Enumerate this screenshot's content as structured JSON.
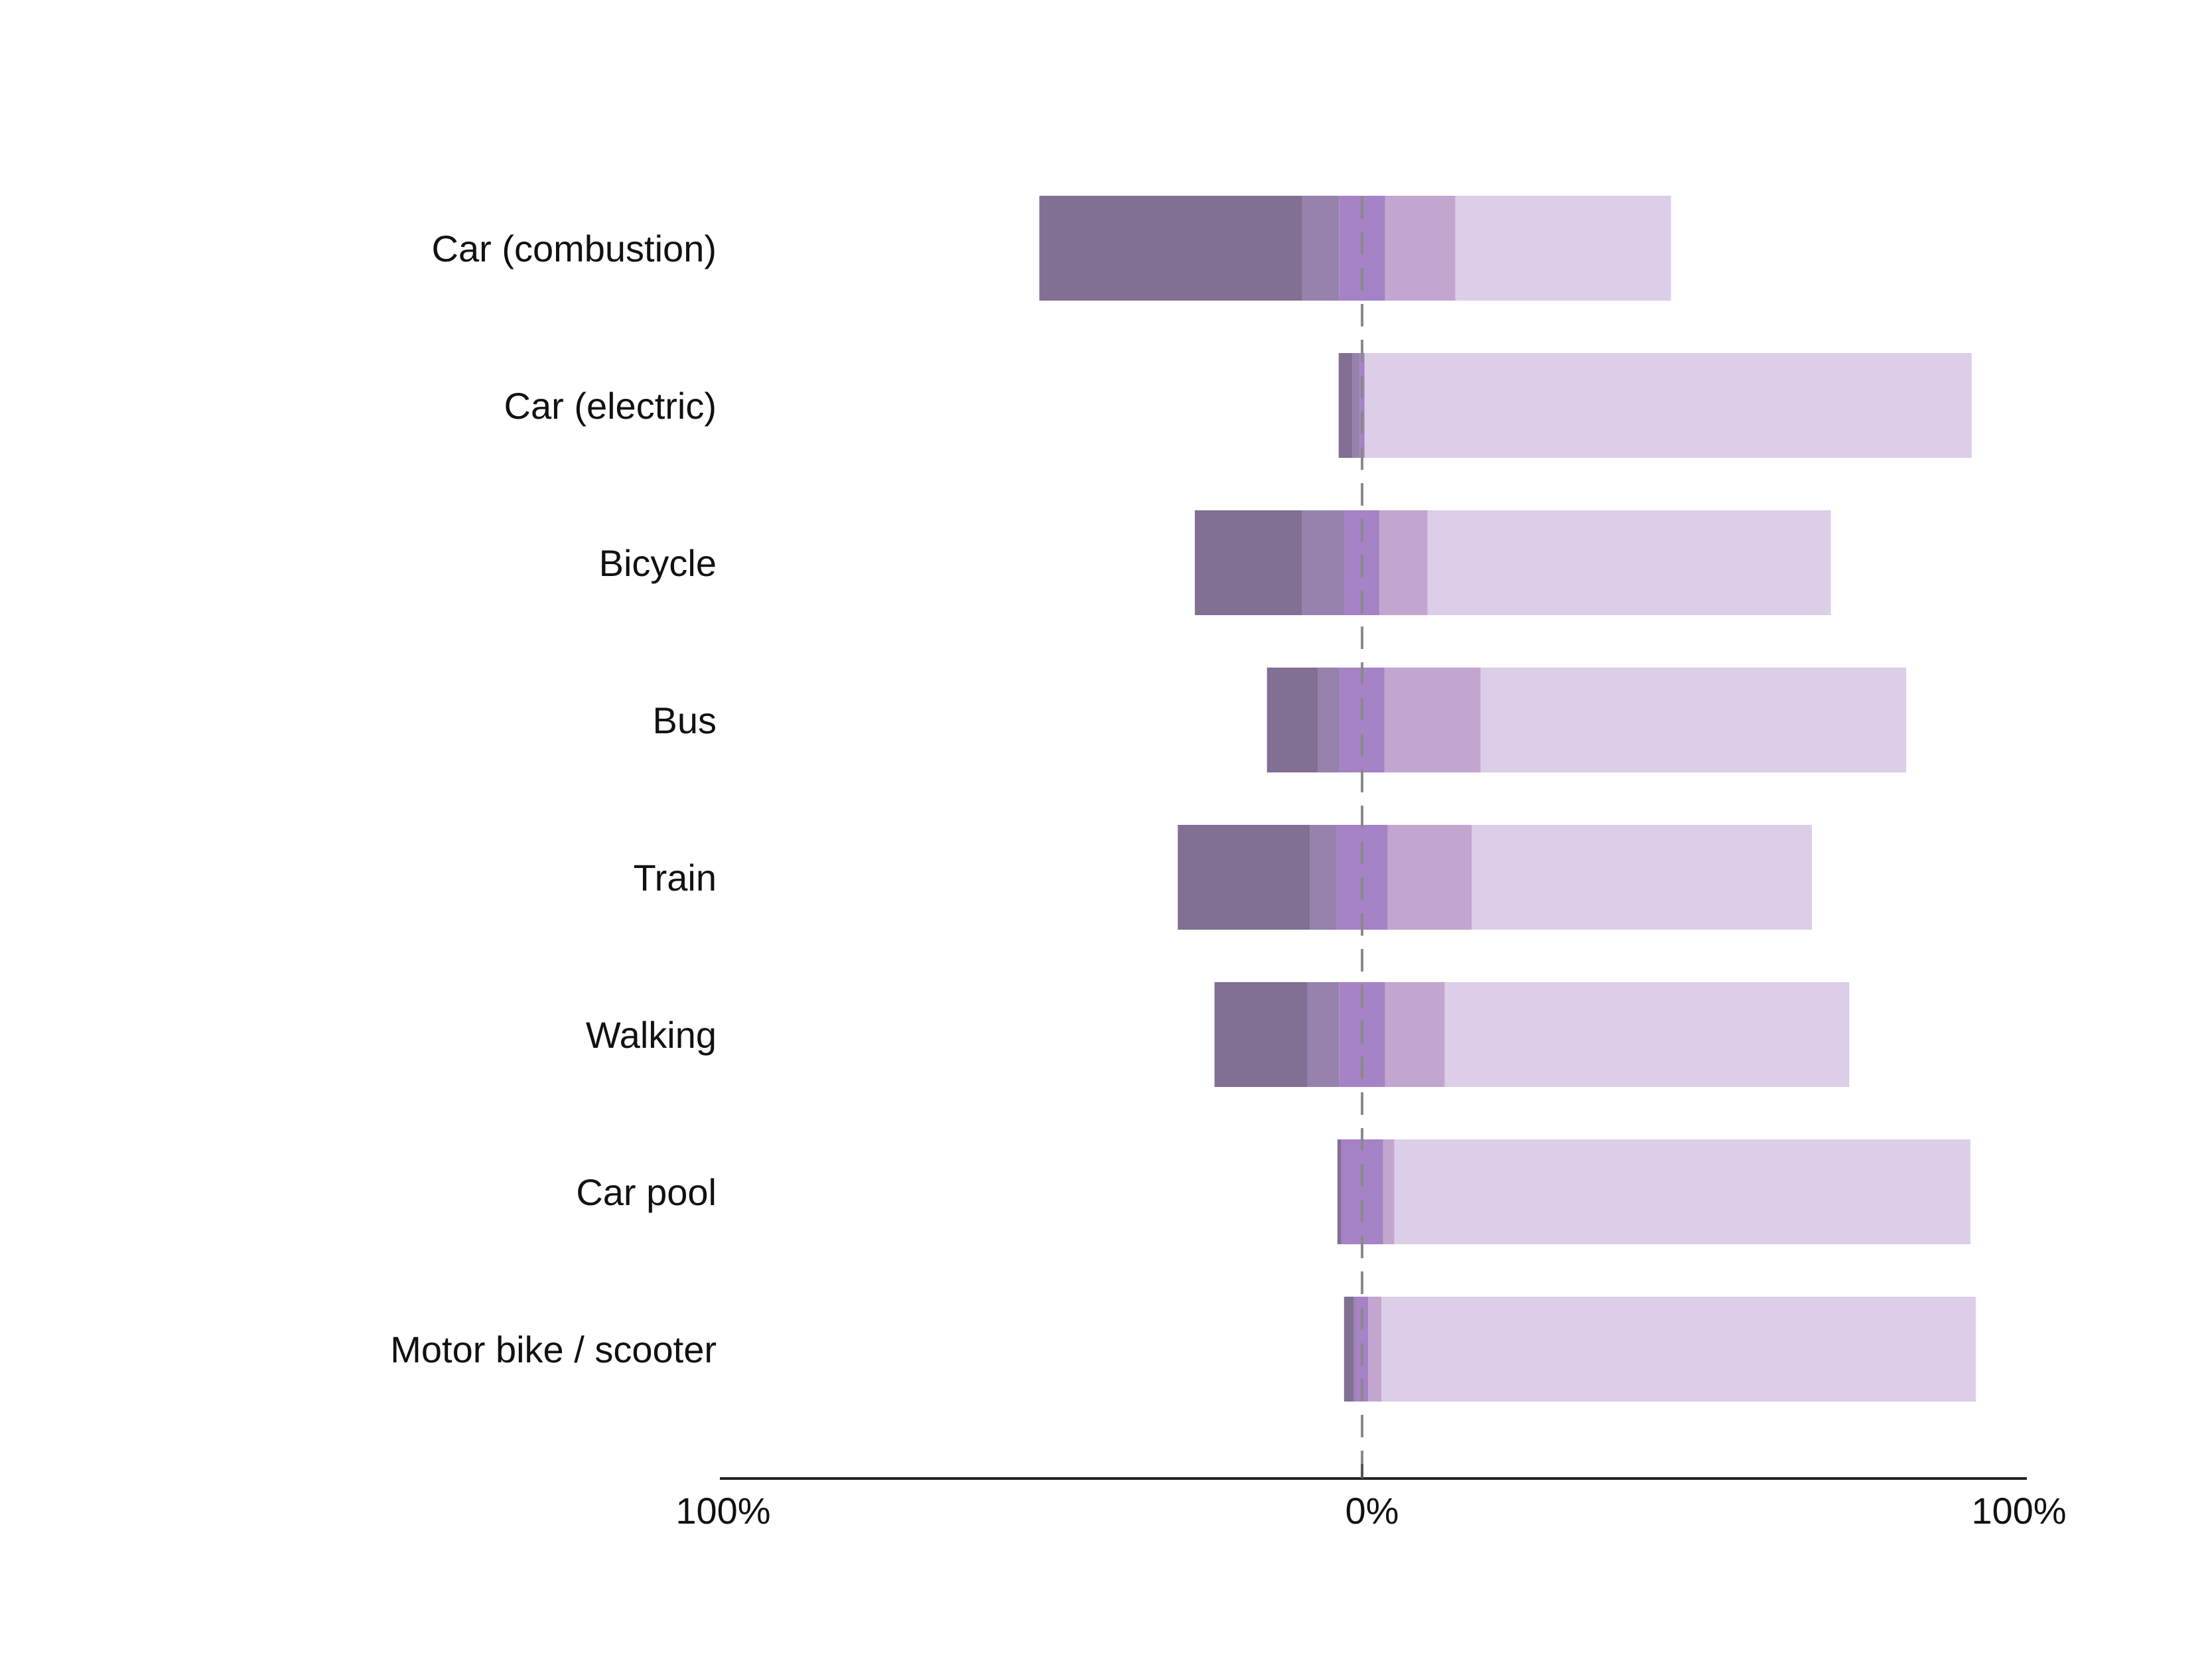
{
  "chart_data": {
    "type": "bar",
    "orientation": "horizontal",
    "stacking": "diverging",
    "title": "",
    "xlabel": "",
    "ylabel": "",
    "categories": [
      "Car (combustion)",
      "Car (electric)",
      "Bicycle",
      "Bus",
      "Train",
      "Walking",
      "Car pool",
      "Motor bike / scooter"
    ],
    "xlim": [
      -100,
      100
    ],
    "x_tick_labels": [
      "100%",
      "0%",
      "100%"
    ],
    "center_line": "dashed",
    "grid": false,
    "legend": "none",
    "series": [
      {
        "values": [
          41.6,
          2.2,
          16.9,
          8.1,
          20.9,
          14.7,
          0.6,
          1.5
        ],
        "color": "#826f94",
        "side": "negative"
      },
      {
        "values": [
          5.8,
          1.1,
          6.8,
          3.4,
          4.2,
          5.0,
          0.0,
          0.4
        ],
        "color": "#9682ad",
        "side": "negative"
      },
      {
        "values": [
          7.3,
          0.8,
          5.5,
          7.1,
          8.1,
          7.3,
          6.6,
          1.9
        ],
        "color": "#a682c6",
        "side": "center"
      },
      {
        "values": [
          11.1,
          0.0,
          7.6,
          15.2,
          13.3,
          9.4,
          1.8,
          2.1
        ],
        "color": "#c2a6cf",
        "side": "positive"
      },
      {
        "values": [
          34.1,
          96.0,
          63.8,
          67.3,
          53.8,
          64.0,
          91.1,
          94.0
        ],
        "color": "#dccde8",
        "side": "positive"
      }
    ]
  }
}
